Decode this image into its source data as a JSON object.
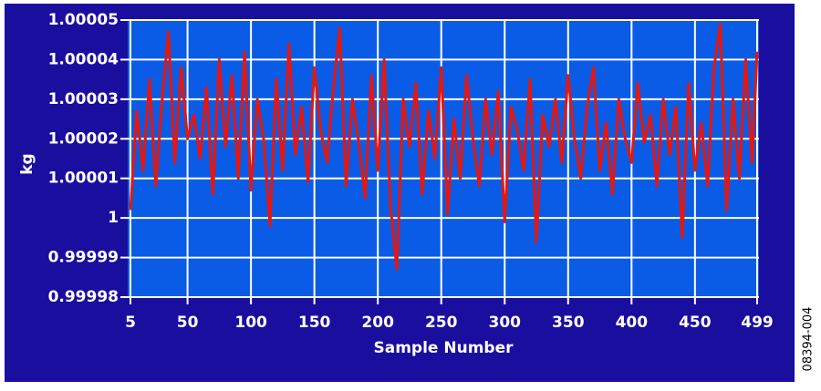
{
  "chart_data": {
    "type": "line",
    "xlabel": "Sample Number",
    "ylabel": "kg",
    "annotation": "08394-004",
    "x": [
      5,
      10,
      15,
      20,
      25,
      30,
      35,
      40,
      45,
      50,
      55,
      60,
      65,
      70,
      75,
      80,
      85,
      90,
      95,
      100,
      105,
      110,
      115,
      120,
      125,
      130,
      135,
      140,
      145,
      150,
      155,
      160,
      165,
      170,
      175,
      180,
      185,
      190,
      195,
      200,
      205,
      210,
      215,
      220,
      225,
      230,
      235,
      240,
      245,
      250,
      255,
      260,
      265,
      270,
      275,
      280,
      285,
      290,
      295,
      300,
      305,
      310,
      315,
      320,
      325,
      330,
      335,
      340,
      345,
      350,
      355,
      360,
      365,
      370,
      375,
      380,
      385,
      390,
      395,
      400,
      405,
      410,
      415,
      420,
      425,
      430,
      435,
      440,
      445,
      450,
      455,
      460,
      465,
      470,
      475,
      480,
      485,
      490,
      495,
      499
    ],
    "values": [
      1.000002,
      1.000027,
      1.000012,
      1.000035,
      1.000008,
      1.00003,
      1.000047,
      1.000014,
      1.000038,
      1.00002,
      1.000026,
      1.000015,
      1.000033,
      1.000006,
      1.00004,
      1.000018,
      1.000036,
      1.00001,
      1.000042,
      1.000007,
      1.00003,
      1.00002,
      0.999998,
      1.000035,
      1.000012,
      1.000044,
      1.000016,
      1.000028,
      1.000009,
      1.000038,
      1.000022,
      1.000014,
      1.000033,
      1.000048,
      1.000008,
      1.00003,
      1.000019,
      1.000005,
      1.000036,
      1.000012,
      1.00004,
      1.000003,
      0.999987,
      1.00003,
      1.000018,
      1.000034,
      1.000006,
      1.000027,
      1.000015,
      1.000038,
      1.000001,
      1.000025,
      1.00001,
      1.000036,
      1.00002,
      1.000008,
      1.00003,
      1.000016,
      1.000032,
      0.999999,
      1.000028,
      1.000022,
      1.000012,
      1.000035,
      0.999994,
      1.000026,
      1.000018,
      1.00003,
      1.000014,
      1.000036,
      1.00002,
      1.00001,
      1.000028,
      1.000038,
      1.000012,
      1.000024,
      1.000006,
      1.00003,
      1.00002,
      1.000014,
      1.000034,
      1.000019,
      1.000026,
      1.000008,
      1.00003,
      1.000016,
      1.000028,
      0.999995,
      1.000034,
      1.000012,
      1.000024,
      1.000008,
      1.000038,
      1.000049,
      1.000002,
      1.00003,
      1.00001,
      1.00004,
      1.000014,
      1.000042
    ],
    "color": "#e8160c",
    "xlim": [
      5,
      499
    ],
    "xticks": [
      5,
      50,
      100,
      150,
      200,
      250,
      300,
      350,
      400,
      450,
      499
    ],
    "ylim": [
      0.99998,
      1.00005
    ],
    "yticks": [
      0.99998,
      0.99999,
      1,
      1.00001,
      1.00002,
      1.00003,
      1.00004,
      1.00005
    ],
    "grid": true
  }
}
